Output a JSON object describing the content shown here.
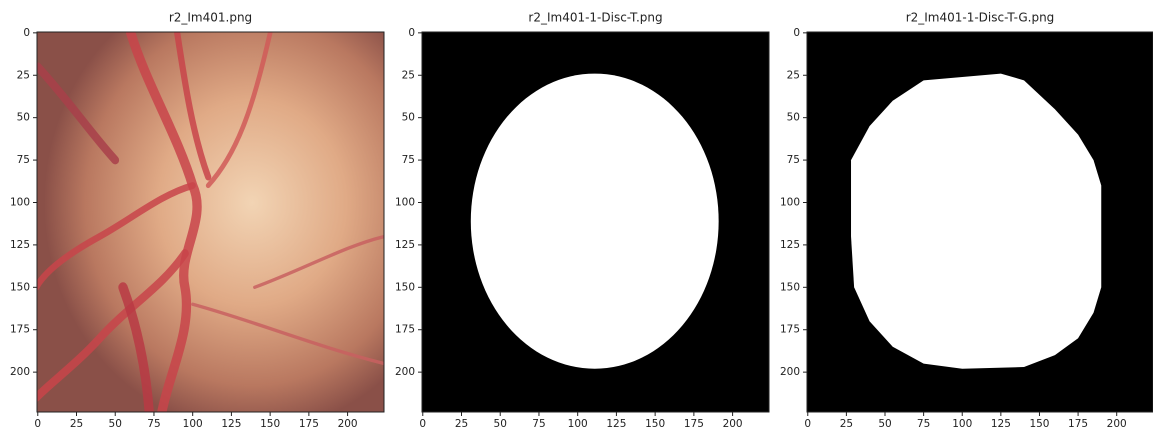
{
  "chart_data": [
    {
      "type": "image",
      "title": "r2_Im401.png",
      "xlim": [
        -0.5,
        223.5
      ],
      "ylim": [
        223.5,
        -0.5
      ],
      "xticks": [
        0,
        25,
        50,
        75,
        100,
        125,
        150,
        175,
        200
      ],
      "yticks": [
        0,
        25,
        50,
        75,
        100,
        125,
        150,
        175,
        200
      ]
    },
    {
      "type": "image",
      "title": "r2_Im401-1-Disc-T.png",
      "xlim": [
        -0.5,
        223.5
      ],
      "ylim": [
        223.5,
        -0.5
      ],
      "xticks": [
        0,
        25,
        50,
        75,
        100,
        125,
        150,
        175,
        200
      ],
      "yticks": [
        0,
        25,
        50,
        75,
        100,
        125,
        150,
        175,
        200
      ]
    },
    {
      "type": "image",
      "title": "r2_Im401-1-Disc-T-G.png",
      "xlim": [
        -0.5,
        223.5
      ],
      "ylim": [
        223.5,
        -0.5
      ],
      "xticks": [
        0,
        25,
        50,
        75,
        100,
        125,
        150,
        175,
        200
      ],
      "yticks": [
        0,
        25,
        50,
        75,
        100,
        125,
        150,
        175,
        200
      ]
    }
  ]
}
